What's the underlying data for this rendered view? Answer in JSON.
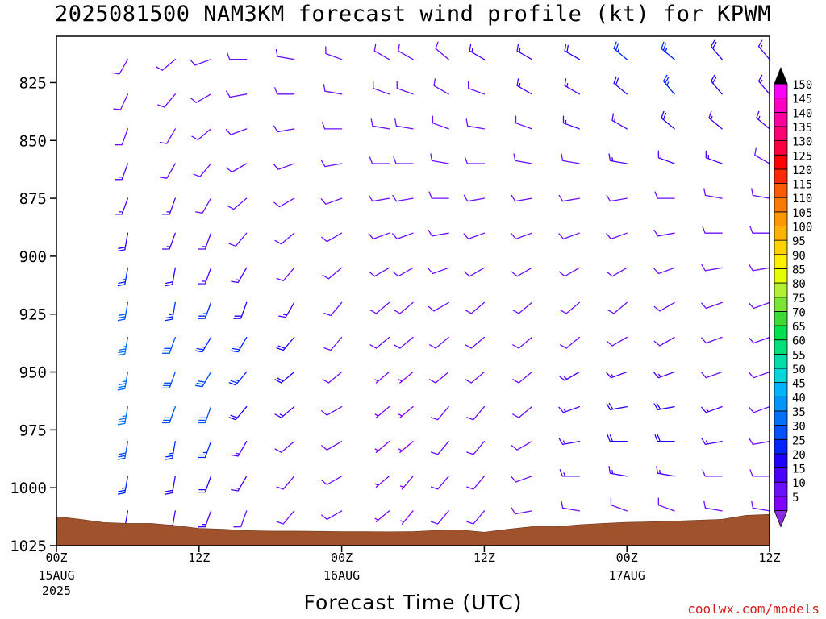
{
  "chart_data": {
    "type": "wind-barb time-height",
    "title": "2025081500 NAM3KM forecast wind profile (kt) for KPWM",
    "xlabel": "Forecast Time (UTC)",
    "ylabel": "",
    "y_axis": {
      "ticks": [
        825,
        850,
        875,
        900,
        925,
        950,
        975,
        1000,
        1025
      ],
      "lim": [
        805,
        1025
      ],
      "inverted": true,
      "unit": "hPa"
    },
    "x_axis": {
      "lim_hours": [
        0,
        60
      ],
      "ticks": [
        {
          "hour": 0,
          "label": "00Z",
          "date": "15AUG",
          "year": "2025"
        },
        {
          "hour": 12,
          "label": "12Z",
          "date": "",
          "year": ""
        },
        {
          "hour": 24,
          "label": "00Z",
          "date": "16AUG",
          "year": ""
        },
        {
          "hour": 36,
          "label": "12Z",
          "date": "",
          "year": ""
        },
        {
          "hour": 48,
          "label": "00Z",
          "date": "17AUG",
          "year": ""
        },
        {
          "hour": 60,
          "label": "12Z",
          "date": "",
          "year": ""
        }
      ]
    },
    "colorbar": {
      "levels": [
        5,
        10,
        15,
        20,
        25,
        30,
        35,
        40,
        45,
        50,
        55,
        60,
        65,
        70,
        75,
        80,
        85,
        90,
        95,
        100,
        105,
        110,
        115,
        120,
        125,
        130,
        135,
        140,
        145,
        150
      ],
      "colors": [
        "#7f00ff",
        "#6a0fff",
        "#4b00ff",
        "#1f00ff",
        "#0024ff",
        "#0050ff",
        "#0070ff",
        "#0096ff",
        "#00b4ff",
        "#00d7d7",
        "#00dcaa",
        "#00e07a",
        "#00e050",
        "#3cdc32",
        "#7ae632",
        "#b4f032",
        "#e6ff00",
        "#ffee00",
        "#ffd200",
        "#ffb400",
        "#ff9600",
        "#ff7800",
        "#ff5a00",
        "#ff2a00",
        "#ff0000",
        "#ff0040",
        "#ff0070",
        "#ff00a0",
        "#ff00c8",
        "#ff00ff"
      ],
      "min_arrow_color": "#8a2be2",
      "max_arrow_color": "#000000"
    },
    "surface_pressure_hpa": {
      "hours": [
        0,
        1,
        2,
        4,
        6,
        8,
        10,
        12,
        14,
        16,
        18,
        20,
        22,
        24,
        26,
        28,
        30,
        32,
        34,
        36,
        38,
        40,
        42,
        44,
        46,
        48,
        50,
        52,
        54,
        56,
        58,
        60
      ],
      "pressure": [
        1012.5,
        1013,
        1013.6,
        1015,
        1015.4,
        1015.4,
        1016.3,
        1017.5,
        1017.9,
        1018.5,
        1018.7,
        1018.7,
        1018.8,
        1018.9,
        1018.9,
        1019,
        1018.9,
        1018.4,
        1018.2,
        1019.2,
        1017.9,
        1016.8,
        1016.8,
        1016,
        1015.4,
        1014.9,
        1014.7,
        1014.4,
        1014,
        1013.6,
        1011.9,
        1011.5
      ]
    },
    "surface_color": "#a0522d",
    "wind_barbs": {
      "units": "kt",
      "direction_convention": "degrees the wind blows from",
      "hours": [
        0,
        6,
        10,
        13,
        16,
        20,
        24,
        28,
        30,
        33,
        36,
        40,
        44,
        48,
        52,
        56,
        60
      ],
      "pressures": [
        815,
        830,
        845,
        860,
        875,
        890,
        905,
        920,
        935,
        950,
        965,
        980,
        995,
        1010
      ],
      "dir": [
        [
          200,
          210,
          230,
          250,
          270,
          280,
          290,
          300,
          300,
          310,
          300,
          300,
          300,
          310,
          310,
          320,
          320
        ],
        [
          200,
          205,
          220,
          240,
          260,
          270,
          280,
          290,
          290,
          300,
          290,
          300,
          300,
          310,
          320,
          320,
          320
        ],
        [
          200,
          200,
          210,
          230,
          250,
          260,
          270,
          280,
          280,
          290,
          280,
          290,
          290,
          300,
          310,
          310,
          310
        ],
        [
          200,
          200,
          210,
          220,
          240,
          250,
          260,
          270,
          270,
          280,
          270,
          280,
          280,
          280,
          290,
          290,
          300
        ],
        [
          190,
          200,
          200,
          210,
          230,
          240,
          250,
          260,
          260,
          270,
          260,
          260,
          260,
          260,
          270,
          280,
          280
        ],
        [
          190,
          190,
          200,
          200,
          220,
          230,
          240,
          250,
          250,
          260,
          250,
          250,
          250,
          250,
          260,
          270,
          270
        ],
        [
          190,
          190,
          190,
          200,
          210,
          220,
          230,
          240,
          240,
          250,
          240,
          240,
          240,
          240,
          250,
          260,
          260
        ],
        [
          190,
          190,
          190,
          200,
          200,
          210,
          220,
          230,
          230,
          240,
          230,
          230,
          230,
          230,
          240,
          250,
          250
        ],
        [
          190,
          190,
          200,
          210,
          210,
          220,
          220,
          230,
          230,
          230,
          230,
          230,
          230,
          240,
          240,
          250,
          250
        ],
        [
          190,
          190,
          200,
          210,
          220,
          230,
          230,
          230,
          230,
          230,
          230,
          230,
          240,
          250,
          250,
          250,
          250
        ],
        [
          190,
          190,
          200,
          200,
          220,
          230,
          240,
          230,
          230,
          220,
          220,
          230,
          250,
          260,
          260,
          250,
          250
        ],
        [
          190,
          190,
          190,
          200,
          210,
          230,
          240,
          230,
          230,
          220,
          220,
          240,
          260,
          270,
          270,
          260,
          260
        ],
        [
          190,
          190,
          190,
          200,
          210,
          220,
          240,
          230,
          220,
          220,
          220,
          250,
          270,
          280,
          280,
          270,
          270
        ],
        [
          190,
          190,
          190,
          200,
          200,
          220,
          240,
          230,
          220,
          220,
          220,
          260,
          280,
          290,
          290,
          280,
          280
        ]
      ],
      "speed": [
        [
          10,
          10,
          10,
          10,
          10,
          10,
          10,
          10,
          10,
          10,
          15,
          15,
          20,
          25,
          25,
          20,
          15
        ],
        [
          10,
          10,
          10,
          10,
          10,
          10,
          10,
          10,
          10,
          10,
          10,
          15,
          15,
          20,
          25,
          20,
          15
        ],
        [
          10,
          10,
          10,
          10,
          10,
          10,
          10,
          10,
          10,
          10,
          10,
          10,
          15,
          15,
          20,
          15,
          15
        ],
        [
          15,
          15,
          10,
          10,
          10,
          10,
          10,
          10,
          10,
          10,
          10,
          10,
          10,
          15,
          15,
          15,
          10
        ],
        [
          15,
          15,
          15,
          10,
          10,
          10,
          10,
          10,
          10,
          10,
          10,
          10,
          10,
          10,
          10,
          10,
          10
        ],
        [
          20,
          20,
          15,
          15,
          10,
          10,
          10,
          10,
          10,
          10,
          10,
          10,
          10,
          10,
          10,
          10,
          10
        ],
        [
          20,
          25,
          20,
          15,
          15,
          10,
          10,
          10,
          10,
          10,
          10,
          10,
          10,
          10,
          10,
          10,
          10
        ],
        [
          25,
          30,
          25,
          25,
          20,
          15,
          10,
          10,
          10,
          10,
          10,
          10,
          10,
          10,
          10,
          10,
          10
        ],
        [
          30,
          35,
          30,
          25,
          25,
          20,
          10,
          10,
          10,
          10,
          10,
          10,
          10,
          10,
          10,
          10,
          10
        ],
        [
          30,
          35,
          30,
          30,
          25,
          20,
          10,
          5,
          5,
          10,
          10,
          10,
          15,
          15,
          15,
          10,
          10
        ],
        [
          30,
          35,
          30,
          30,
          20,
          15,
          10,
          5,
          5,
          10,
          10,
          10,
          15,
          20,
          20,
          15,
          10
        ],
        [
          25,
          30,
          25,
          25,
          15,
          10,
          10,
          5,
          5,
          10,
          10,
          10,
          15,
          20,
          20,
          15,
          10
        ],
        [
          20,
          25,
          20,
          20,
          15,
          10,
          10,
          5,
          5,
          10,
          10,
          10,
          15,
          15,
          15,
          10,
          10
        ],
        [
          15,
          20,
          15,
          15,
          10,
          10,
          10,
          5,
          5,
          10,
          10,
          10,
          10,
          10,
          10,
          10,
          10
        ]
      ]
    }
  },
  "credit": "coolwx.com/models"
}
